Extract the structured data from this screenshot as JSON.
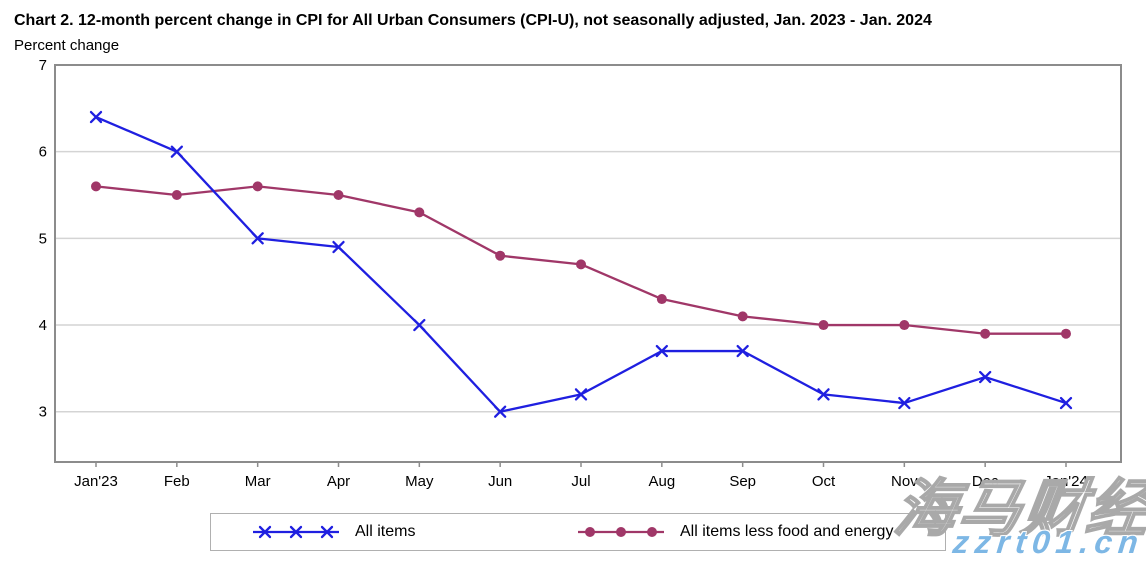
{
  "header": {
    "title": "Chart 2. 12-month percent change in CPI for All Urban Consumers (CPI-U), not seasonally adjusted, Jan. 2023 - Jan. 2024",
    "subtitle": "Percent change"
  },
  "chart_data": {
    "type": "line",
    "title": "Chart 2. 12-month percent change in CPI for All Urban Consumers (CPI-U), not seasonally adjusted, Jan. 2023 - Jan. 2024",
    "ylabel": "Percent change",
    "xlabel": "",
    "categories": [
      "Jan'23",
      "Feb",
      "Mar",
      "Apr",
      "May",
      "Jun",
      "Jul",
      "Aug",
      "Sep",
      "Oct",
      "Nov",
      "Dec",
      "Jan'24"
    ],
    "series": [
      {
        "name": "All items",
        "marker": "x",
        "color": "#1f1fe0",
        "values": [
          6.4,
          6.0,
          5.0,
          4.9,
          4.0,
          3.0,
          3.2,
          3.7,
          3.7,
          3.2,
          3.1,
          3.4,
          3.1
        ]
      },
      {
        "name": "All items less food and energy",
        "marker": "circle",
        "color": "#a03768",
        "values": [
          5.6,
          5.5,
          5.6,
          5.5,
          5.3,
          4.8,
          4.7,
          4.3,
          4.1,
          4.0,
          4.0,
          3.9,
          3.9
        ]
      }
    ],
    "yticks": [
      3,
      4,
      5,
      6,
      7
    ],
    "ylim": [
      2.42,
      7
    ],
    "grid": "horizontal-only",
    "legend_position": "bottom",
    "frame_color": "#8c8c8c",
    "grid_color": "#d4d4d4"
  },
  "watermark": {
    "text_cn": "海马财经",
    "text_url": "zzrt01.cn",
    "url_color": "#7db7e5"
  }
}
